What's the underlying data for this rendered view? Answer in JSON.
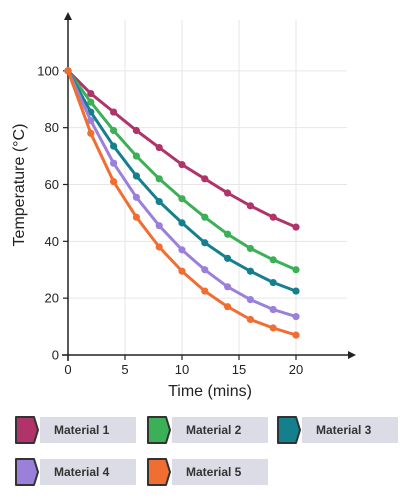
{
  "chart_data": {
    "type": "line",
    "xlabel": "Time (mins)",
    "ylabel": "Temperature (°C)",
    "xlim": [
      0,
      25
    ],
    "ylim": [
      0,
      120
    ],
    "x_ticks": [
      0,
      5,
      10,
      15,
      20
    ],
    "y_ticks": [
      0,
      20,
      40,
      60,
      80,
      100
    ],
    "grid": true,
    "legend_position": "bottom",
    "x": [
      0,
      2,
      4,
      6,
      8,
      10,
      12,
      14,
      16,
      18,
      20
    ],
    "series": [
      {
        "name": "Material 1",
        "color": "#b0336a",
        "values": [
          100,
          92,
          85.5,
          79,
          73,
          67,
          62,
          57,
          52.5,
          48.5,
          45
        ]
      },
      {
        "name": "Material 2",
        "color": "#3cb056",
        "values": [
          100,
          89,
          79,
          70,
          62,
          55,
          48.5,
          42.5,
          37.5,
          33.5,
          30
        ]
      },
      {
        "name": "Material 3",
        "color": "#14808e",
        "values": [
          100,
          85.5,
          73.5,
          63,
          54,
          46.5,
          39.5,
          34,
          29.5,
          25.5,
          22.5
        ]
      },
      {
        "name": "Material 4",
        "color": "#9b80db",
        "values": [
          100,
          82.5,
          67.5,
          55.5,
          45.5,
          37,
          30,
          24,
          19.5,
          16,
          13.5
        ]
      },
      {
        "name": "Material 5",
        "color": "#f16e33",
        "values": [
          100,
          78,
          61,
          48.5,
          38,
          29.5,
          22.5,
          17,
          12.5,
          9.5,
          7
        ]
      }
    ]
  }
}
